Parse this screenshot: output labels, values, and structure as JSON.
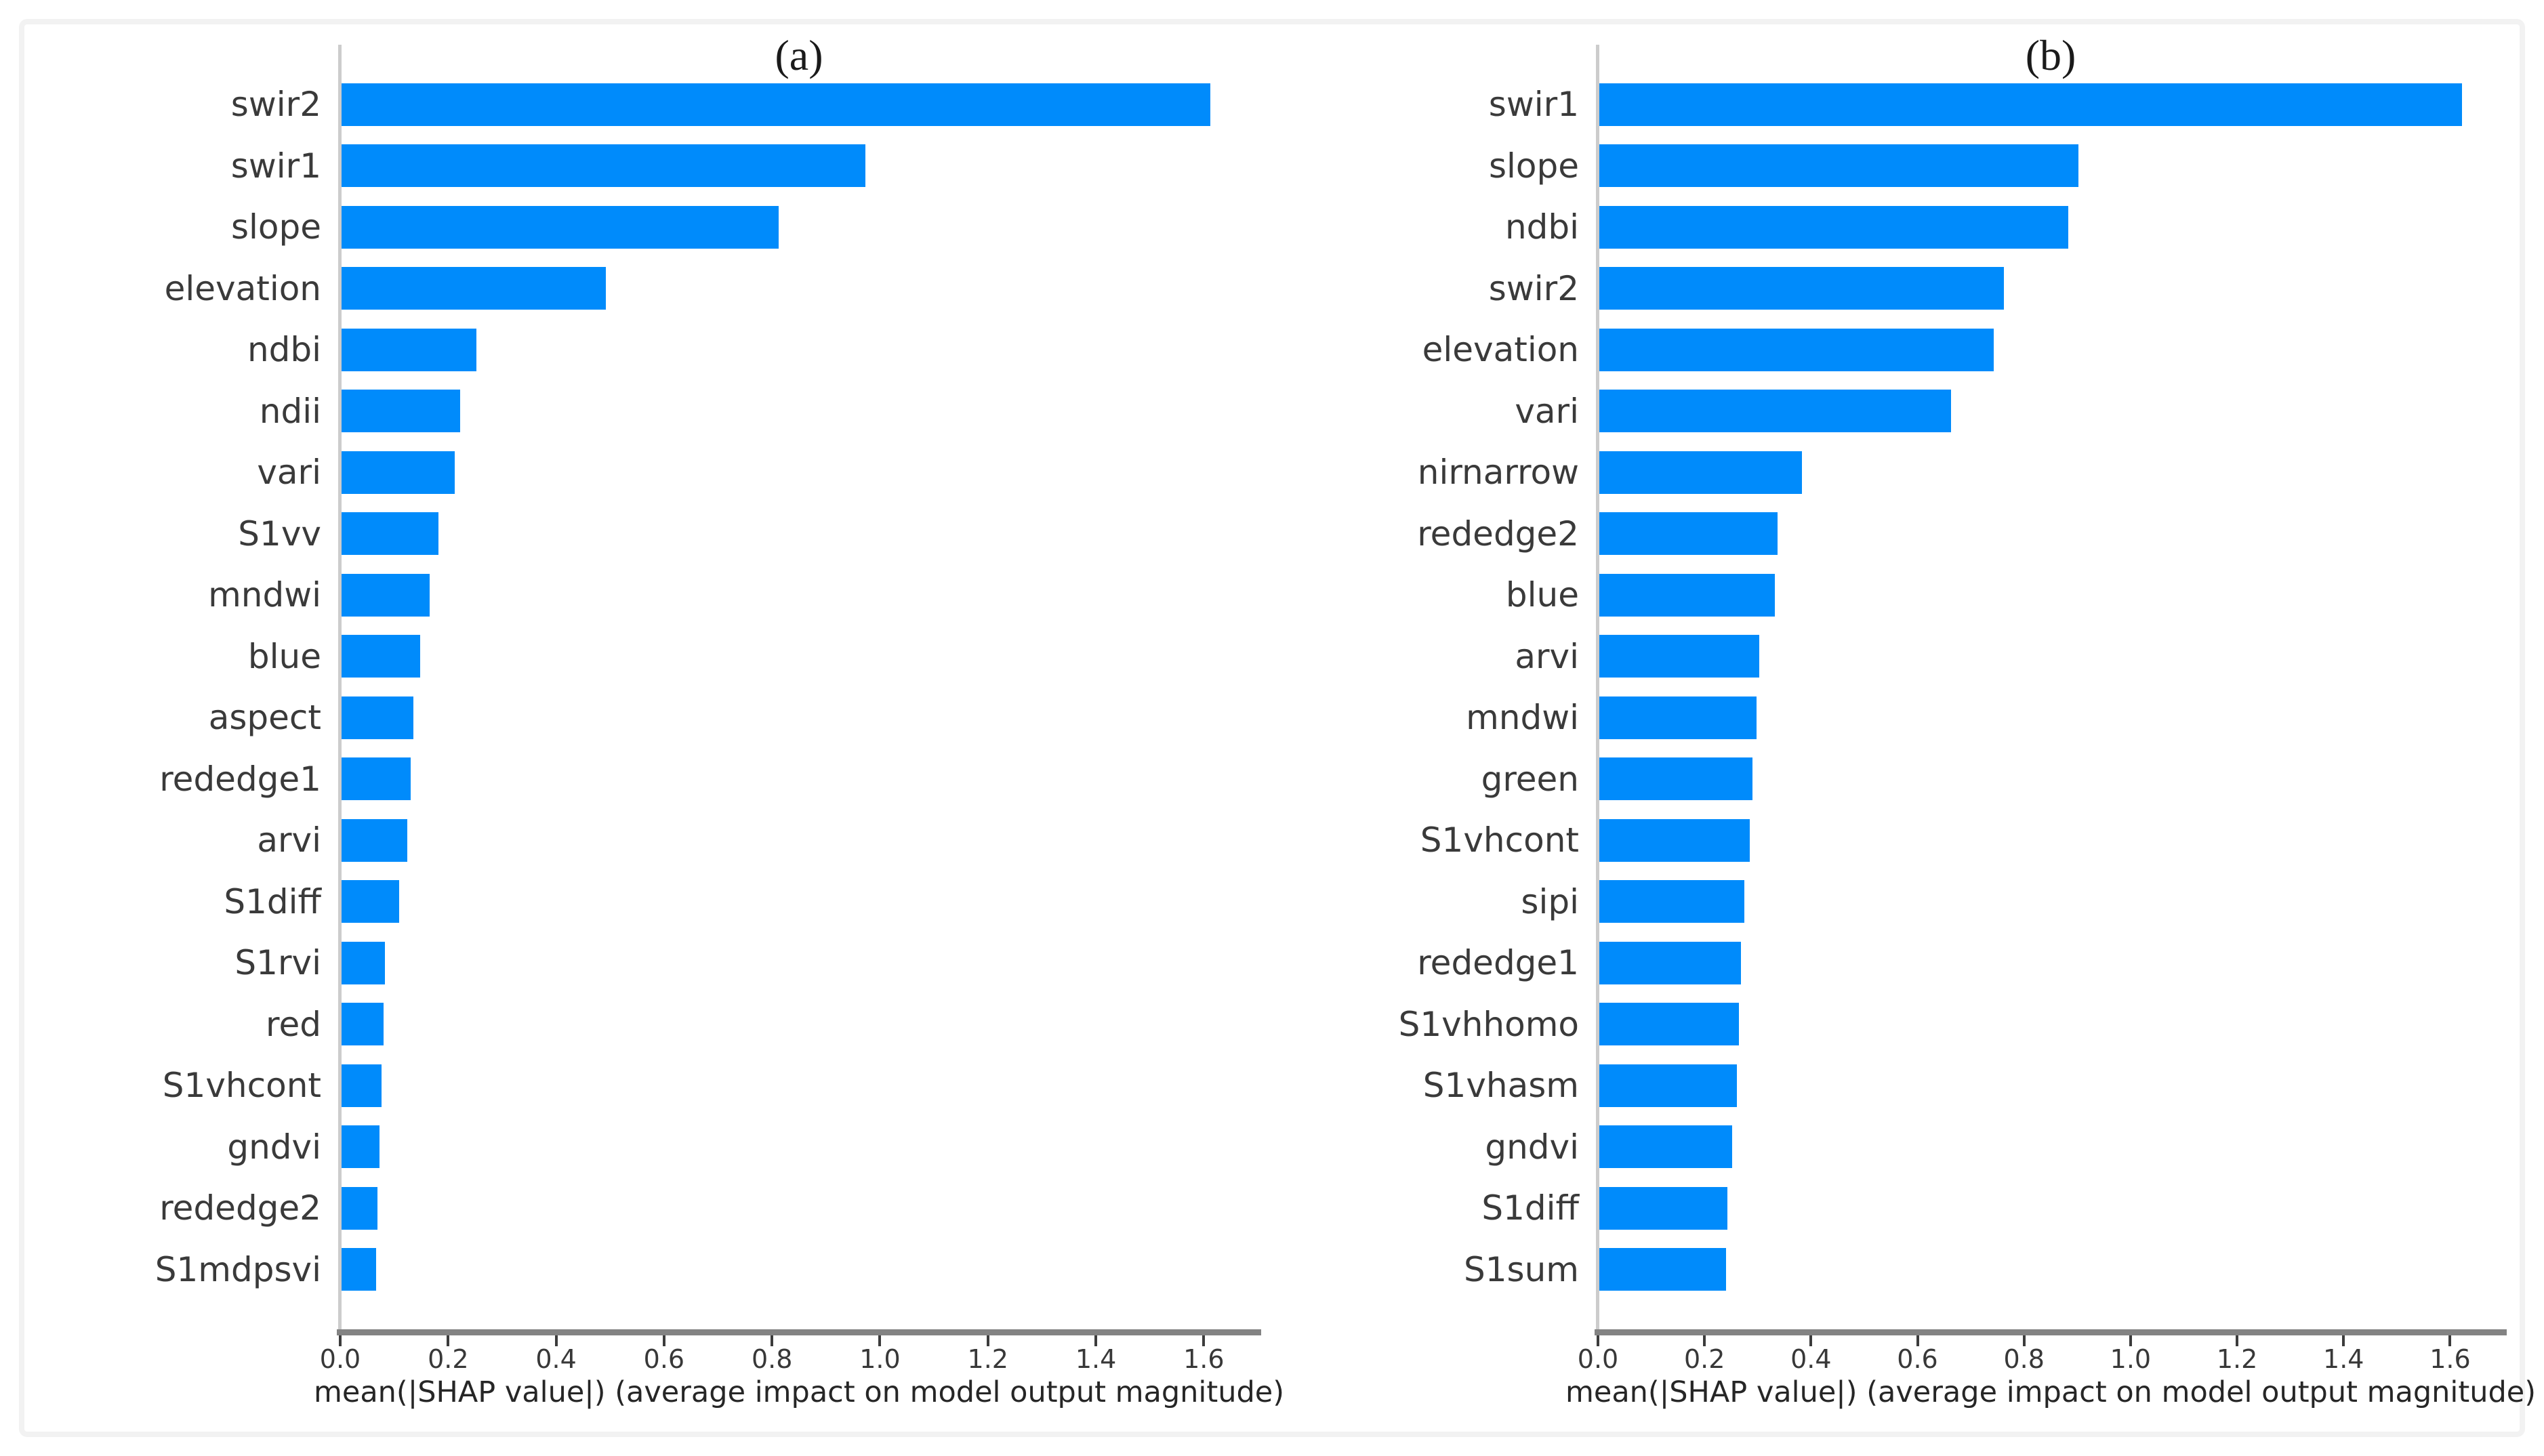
{
  "style": {
    "background": "#ffffff",
    "frame_border_color": "#f2f2f2",
    "bar_color": "#008bfb",
    "text_color": "#262626",
    "label_color": "#3a3a3a",
    "spine_bottom_color": "#838383",
    "spine_left_color": "#cccccc"
  },
  "chart_data": [
    {
      "type": "bar",
      "orientation": "horizontal",
      "title": "(a)",
      "xlabel": "mean(|SHAP value|) (average impact on model output magnitude)",
      "xlim": [
        0,
        1.7
      ],
      "xticks": [
        "0.0",
        "0.2",
        "0.4",
        "0.6",
        "0.8",
        "1.0",
        "1.2",
        "1.4",
        "1.6"
      ],
      "xtick_values": [
        0,
        0.2,
        0.4,
        0.6,
        0.8,
        1.0,
        1.2,
        1.4,
        1.6
      ],
      "grid": false,
      "legend": "none",
      "bar_color": "#008bfb",
      "categories": [
        "swir2",
        "swir1",
        "slope",
        "elevation",
        "ndbi",
        "ndii",
        "vari",
        "S1vv",
        "mndwi",
        "blue",
        "aspect",
        "rededge1",
        "arvi",
        "S1diff",
        "S1rvi",
        "red",
        "S1vhcont",
        "gndvi",
        "rededge2",
        "S1mdpsvi"
      ],
      "values": [
        1.61,
        0.97,
        0.81,
        0.49,
        0.25,
        0.22,
        0.21,
        0.18,
        0.163,
        0.146,
        0.133,
        0.128,
        0.122,
        0.107,
        0.08,
        0.078,
        0.074,
        0.07,
        0.067,
        0.064
      ]
    },
    {
      "type": "bar",
      "orientation": "horizontal",
      "title": "(b)",
      "xlabel": "mean(|SHAP value|) (average impact on model output magnitude)",
      "xlim": [
        0,
        1.7
      ],
      "xticks": [
        "0.0",
        "0.2",
        "0.4",
        "0.6",
        "0.8",
        "1.0",
        "1.2",
        "1.4",
        "1.6"
      ],
      "xtick_values": [
        0,
        0.2,
        0.4,
        0.6,
        0.8,
        1.0,
        1.2,
        1.4,
        1.6
      ],
      "grid": false,
      "legend": "none",
      "bar_color": "#008bfb",
      "categories": [
        "swir1",
        "slope",
        "ndbi",
        "swir2",
        "elevation",
        "vari",
        "nirnarrow",
        "rededge2",
        "blue",
        "arvi",
        "mndwi",
        "green",
        "S1vhcont",
        "sipi",
        "rededge1",
        "S1vhhomo",
        "S1vhasm",
        "gndvi",
        "S1diff",
        "S1sum"
      ],
      "values": [
        1.62,
        0.9,
        0.88,
        0.76,
        0.74,
        0.66,
        0.38,
        0.335,
        0.33,
        0.3,
        0.295,
        0.288,
        0.283,
        0.272,
        0.266,
        0.262,
        0.258,
        0.25,
        0.24,
        0.238
      ]
    }
  ]
}
